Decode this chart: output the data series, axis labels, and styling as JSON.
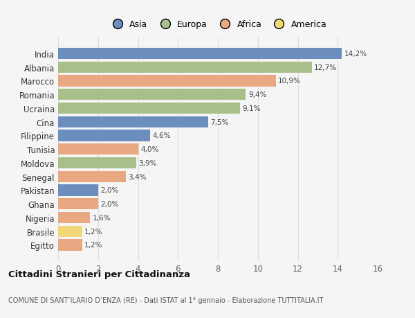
{
  "categories": [
    "India",
    "Albania",
    "Marocco",
    "Romania",
    "Ucraina",
    "Cina",
    "Filippine",
    "Tunisia",
    "Moldova",
    "Senegal",
    "Pakistan",
    "Ghana",
    "Nigeria",
    "Brasile",
    "Egitto"
  ],
  "values": [
    14.2,
    12.7,
    10.9,
    9.4,
    9.1,
    7.5,
    4.6,
    4.0,
    3.9,
    3.4,
    2.0,
    2.0,
    1.6,
    1.2,
    1.2
  ],
  "labels": [
    "14,2%",
    "12,7%",
    "10,9%",
    "9,4%",
    "9,1%",
    "7,5%",
    "4,6%",
    "4,0%",
    "3,9%",
    "3,4%",
    "2,0%",
    "2,0%",
    "1,6%",
    "1,2%",
    "1,2%"
  ],
  "colors": [
    "#6b8ebf",
    "#a8bf8a",
    "#e8a882",
    "#a8bf8a",
    "#a8bf8a",
    "#6b8ebf",
    "#6b8ebf",
    "#e8a882",
    "#a8bf8a",
    "#e8a882",
    "#6b8ebf",
    "#e8a882",
    "#e8a882",
    "#f0d878",
    "#e8a882"
  ],
  "legend_labels": [
    "Asia",
    "Europa",
    "Africa",
    "America"
  ],
  "legend_colors": [
    "#6b8ebf",
    "#a8bf8a",
    "#e8a882",
    "#f0d878"
  ],
  "xlim": [
    0,
    16
  ],
  "xticks": [
    0,
    2,
    4,
    6,
    8,
    10,
    12,
    14,
    16
  ],
  "title": "Cittadini Stranieri per Cittadinanza",
  "subtitle": "COMUNE DI SANT’ILARIO D’ENZA (RE) - Dati ISTAT al 1° gennaio - Elaborazione TUTTITALIA.IT",
  "bg_color": "#f5f5f5",
  "grid_color": "#dddddd"
}
